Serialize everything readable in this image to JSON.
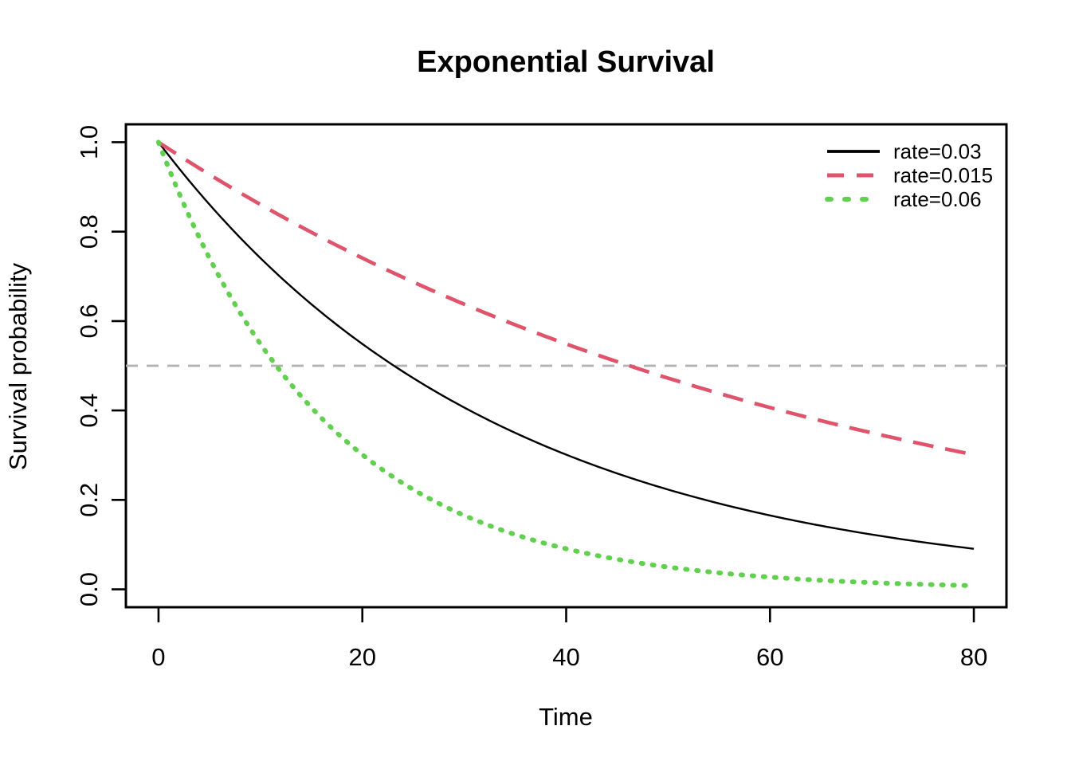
{
  "chart_data": {
    "type": "line",
    "title": "Exponential Survival",
    "xlabel": "Time",
    "ylabel": "Survival probability",
    "xlim": [
      0,
      80
    ],
    "ylim": [
      0,
      1
    ],
    "x_ticks": [
      0,
      20,
      40,
      60,
      80
    ],
    "x_tick_labels": [
      "0",
      "20",
      "40",
      "60",
      "80"
    ],
    "y_ticks": [
      0,
      0.2,
      0.4,
      0.6,
      0.8,
      1.0
    ],
    "y_tick_labels": [
      "0.0",
      "0.2",
      "0.4",
      "0.6",
      "0.8",
      "1.0"
    ],
    "grid": false,
    "legend_position": "topright",
    "axis_color": "#000000",
    "series": [
      {
        "name": "rate=0.03",
        "rate": 0.03,
        "color": "#000000",
        "line_style": "solid",
        "x": [
          0,
          5,
          10,
          15,
          20,
          25,
          30,
          35,
          40,
          45,
          50,
          55,
          60,
          65,
          70,
          75,
          80
        ],
        "y": [
          1.0,
          0.8607,
          0.7408,
          0.6376,
          0.5488,
          0.4724,
          0.4066,
          0.3499,
          0.3012,
          0.2592,
          0.2231,
          0.192,
          0.1653,
          0.1423,
          0.1225,
          0.1054,
          0.0907
        ]
      },
      {
        "name": "rate=0.015",
        "rate": 0.015,
        "color": "#DF536B",
        "line_style": "dashed",
        "x": [
          0,
          5,
          10,
          15,
          20,
          25,
          30,
          35,
          40,
          45,
          50,
          55,
          60,
          65,
          70,
          75,
          80
        ],
        "y": [
          1.0,
          0.9277,
          0.8607,
          0.7985,
          0.7408,
          0.6873,
          0.6376,
          0.5916,
          0.5488,
          0.5092,
          0.4724,
          0.4382,
          0.4066,
          0.3772,
          0.3499,
          0.3247,
          0.3012
        ]
      },
      {
        "name": "rate=0.06",
        "rate": 0.06,
        "color": "#61D04F",
        "line_style": "dotted",
        "x": [
          0,
          5,
          10,
          15,
          20,
          25,
          30,
          35,
          40,
          45,
          50,
          55,
          60,
          65,
          70,
          75,
          80
        ],
        "y": [
          1.0,
          0.7408,
          0.5488,
          0.4066,
          0.3012,
          0.2231,
          0.1653,
          0.1225,
          0.0907,
          0.0672,
          0.0498,
          0.0369,
          0.0273,
          0.0202,
          0.015,
          0.0111,
          0.0082
        ]
      }
    ],
    "reference_line": {
      "y": 0.5,
      "color": "#B1B1B1",
      "line_style": "dashed"
    },
    "legend": {
      "entries": [
        {
          "label": "rate=0.03",
          "color": "#000000",
          "line_style": "solid"
        },
        {
          "label": "rate=0.015",
          "color": "#DF536B",
          "line_style": "dashed"
        },
        {
          "label": "rate=0.06",
          "color": "#61D04F",
          "line_style": "dotted"
        }
      ]
    }
  }
}
